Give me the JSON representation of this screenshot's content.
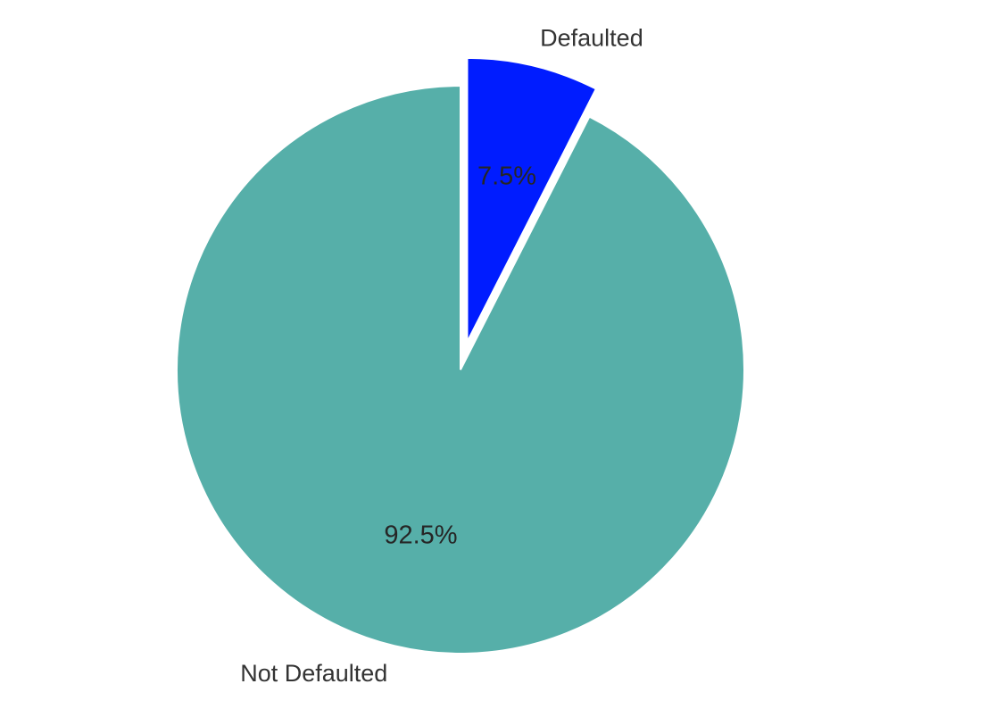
{
  "chart_data": {
    "type": "pie",
    "title": "",
    "start_angle_deg": 90,
    "direction": "counterclockwise",
    "slices": [
      {
        "label": "Not Defaulted",
        "value": 92.5,
        "pct_label": "92.5%",
        "color": "#56afa9",
        "exploded": false
      },
      {
        "label": "Defaulted",
        "value": 7.5,
        "pct_label": "7.5%",
        "color": "#001cff",
        "exploded": true
      }
    ],
    "legend": "none"
  }
}
